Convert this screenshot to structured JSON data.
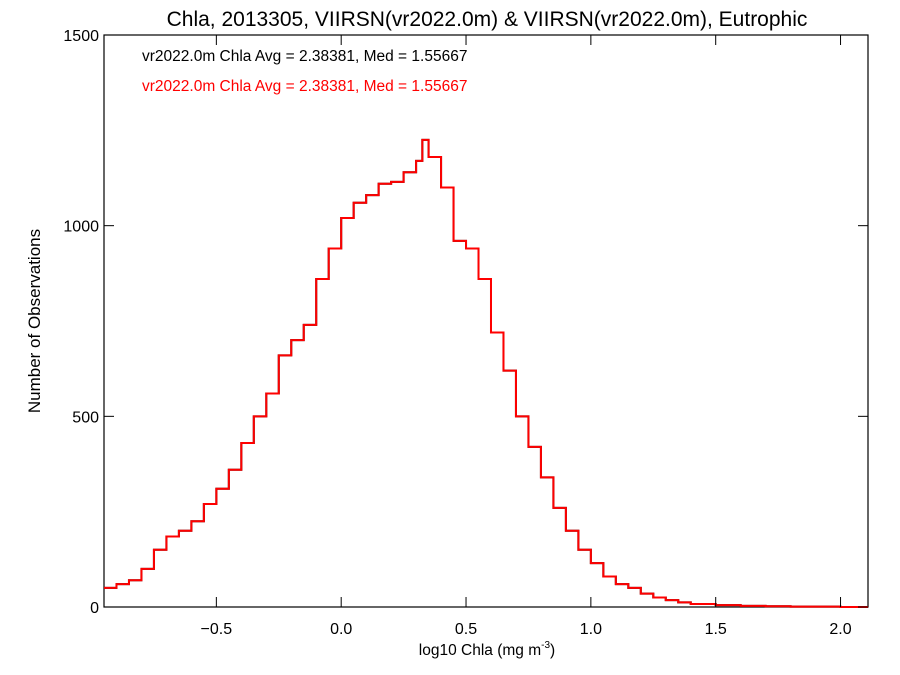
{
  "colors": {
    "series_a": "#000000",
    "series_b": "#ff0000",
    "background": "#ffffff"
  },
  "chart_data": {
    "type": "line",
    "step": true,
    "title": "Chla, 2013305, VIIRSN(vr2022.0m) & VIIRSN(vr2022.0m), Eutrophic",
    "xlabel_main": "log10 Chla (mg m",
    "xlabel_sup": "-3",
    "xlabel_close": ")",
    "ylabel": "Number of Observations",
    "xlim": [
      -0.95,
      2.11
    ],
    "ylim": [
      0,
      1500
    ],
    "xticks": [
      -0.5,
      0.0,
      0.5,
      1.0,
      1.5,
      2.0
    ],
    "xtick_labels": [
      "−0.5",
      "0.0",
      "0.5",
      "1.0",
      "1.5",
      "2.0"
    ],
    "yticks": [
      0,
      500,
      1000,
      1500
    ],
    "ytick_labels": [
      "0",
      "500",
      "1000",
      "1500"
    ],
    "grid": false,
    "annotations": [
      "vr2022.0m Chla Avg = 2.38381, Med = 1.55667",
      "vr2022.0m Chla Avg = 2.38381, Med = 1.55667"
    ],
    "series": [
      {
        "color": "#000000"
      },
      {
        "color": "#ff0000"
      }
    ],
    "x": [
      -0.95,
      -0.9,
      -0.85,
      -0.8,
      -0.75,
      -0.7,
      -0.65,
      -0.6,
      -0.55,
      -0.5,
      -0.45,
      -0.4,
      -0.35,
      -0.3,
      -0.25,
      -0.2,
      -0.15,
      -0.1,
      -0.05,
      0.0,
      0.05,
      0.1,
      0.15,
      0.2,
      0.25,
      0.3,
      0.325,
      0.35,
      0.4,
      0.45,
      0.5,
      0.55,
      0.6,
      0.65,
      0.7,
      0.75,
      0.8,
      0.85,
      0.9,
      0.95,
      1.0,
      1.05,
      1.1,
      1.15,
      1.2,
      1.25,
      1.3,
      1.35,
      1.4,
      1.5,
      1.6,
      1.7,
      1.8,
      1.9,
      2.0,
      2.11
    ],
    "values": [
      50,
      60,
      70,
      100,
      150,
      185,
      200,
      225,
      270,
      310,
      360,
      430,
      500,
      560,
      660,
      700,
      740,
      860,
      940,
      1020,
      1060,
      1080,
      1110,
      1115,
      1140,
      1170,
      1225,
      1180,
      1100,
      960,
      940,
      860,
      720,
      620,
      500,
      420,
      340,
      260,
      200,
      150,
      115,
      80,
      60,
      50,
      35,
      25,
      18,
      12,
      8,
      5,
      3,
      2,
      1,
      1,
      0,
      0
    ]
  }
}
